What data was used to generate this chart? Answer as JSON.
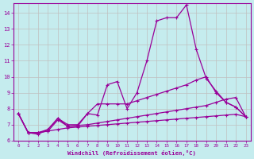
{
  "title": "",
  "xlabel": "Windchill (Refroidissement éolien,°C)",
  "background_color": "#c5ecee",
  "grid_color": "#c0c0c0",
  "line_color": "#990099",
  "xlim": [
    -0.5,
    23.5
  ],
  "ylim": [
    6.0,
    14.6
  ],
  "yticks": [
    6,
    7,
    8,
    9,
    10,
    11,
    12,
    13,
    14
  ],
  "xticks": [
    0,
    1,
    2,
    3,
    4,
    5,
    6,
    7,
    8,
    9,
    10,
    11,
    12,
    13,
    14,
    15,
    16,
    17,
    18,
    19,
    20,
    21,
    22,
    23
  ],
  "series1": [
    7.7,
    6.5,
    6.4,
    6.7,
    7.4,
    6.9,
    6.9,
    7.7,
    7.6,
    9.5,
    9.7,
    8.0,
    9.0,
    11.0,
    13.5,
    13.7,
    13.7,
    14.5,
    11.7,
    9.9,
    9.1,
    8.4,
    8.1,
    7.5
  ],
  "series2": [
    7.7,
    6.5,
    6.5,
    6.7,
    7.4,
    7.0,
    7.0,
    7.7,
    8.3,
    8.3,
    8.3,
    8.3,
    8.5,
    8.7,
    8.9,
    9.1,
    9.3,
    9.5,
    9.8,
    10.0,
    9.0,
    8.4,
    8.1,
    7.5
  ],
  "series3": [
    7.7,
    6.5,
    6.5,
    6.6,
    7.3,
    6.9,
    6.95,
    7.0,
    7.1,
    7.2,
    7.3,
    7.4,
    7.5,
    7.6,
    7.7,
    7.8,
    7.9,
    8.0,
    8.1,
    8.2,
    8.4,
    8.6,
    8.7,
    7.5
  ],
  "series4": [
    7.7,
    6.5,
    6.5,
    6.6,
    6.7,
    6.8,
    6.85,
    6.9,
    6.95,
    7.0,
    7.05,
    7.1,
    7.15,
    7.2,
    7.25,
    7.3,
    7.35,
    7.4,
    7.45,
    7.5,
    7.55,
    7.6,
    7.65,
    7.5
  ]
}
